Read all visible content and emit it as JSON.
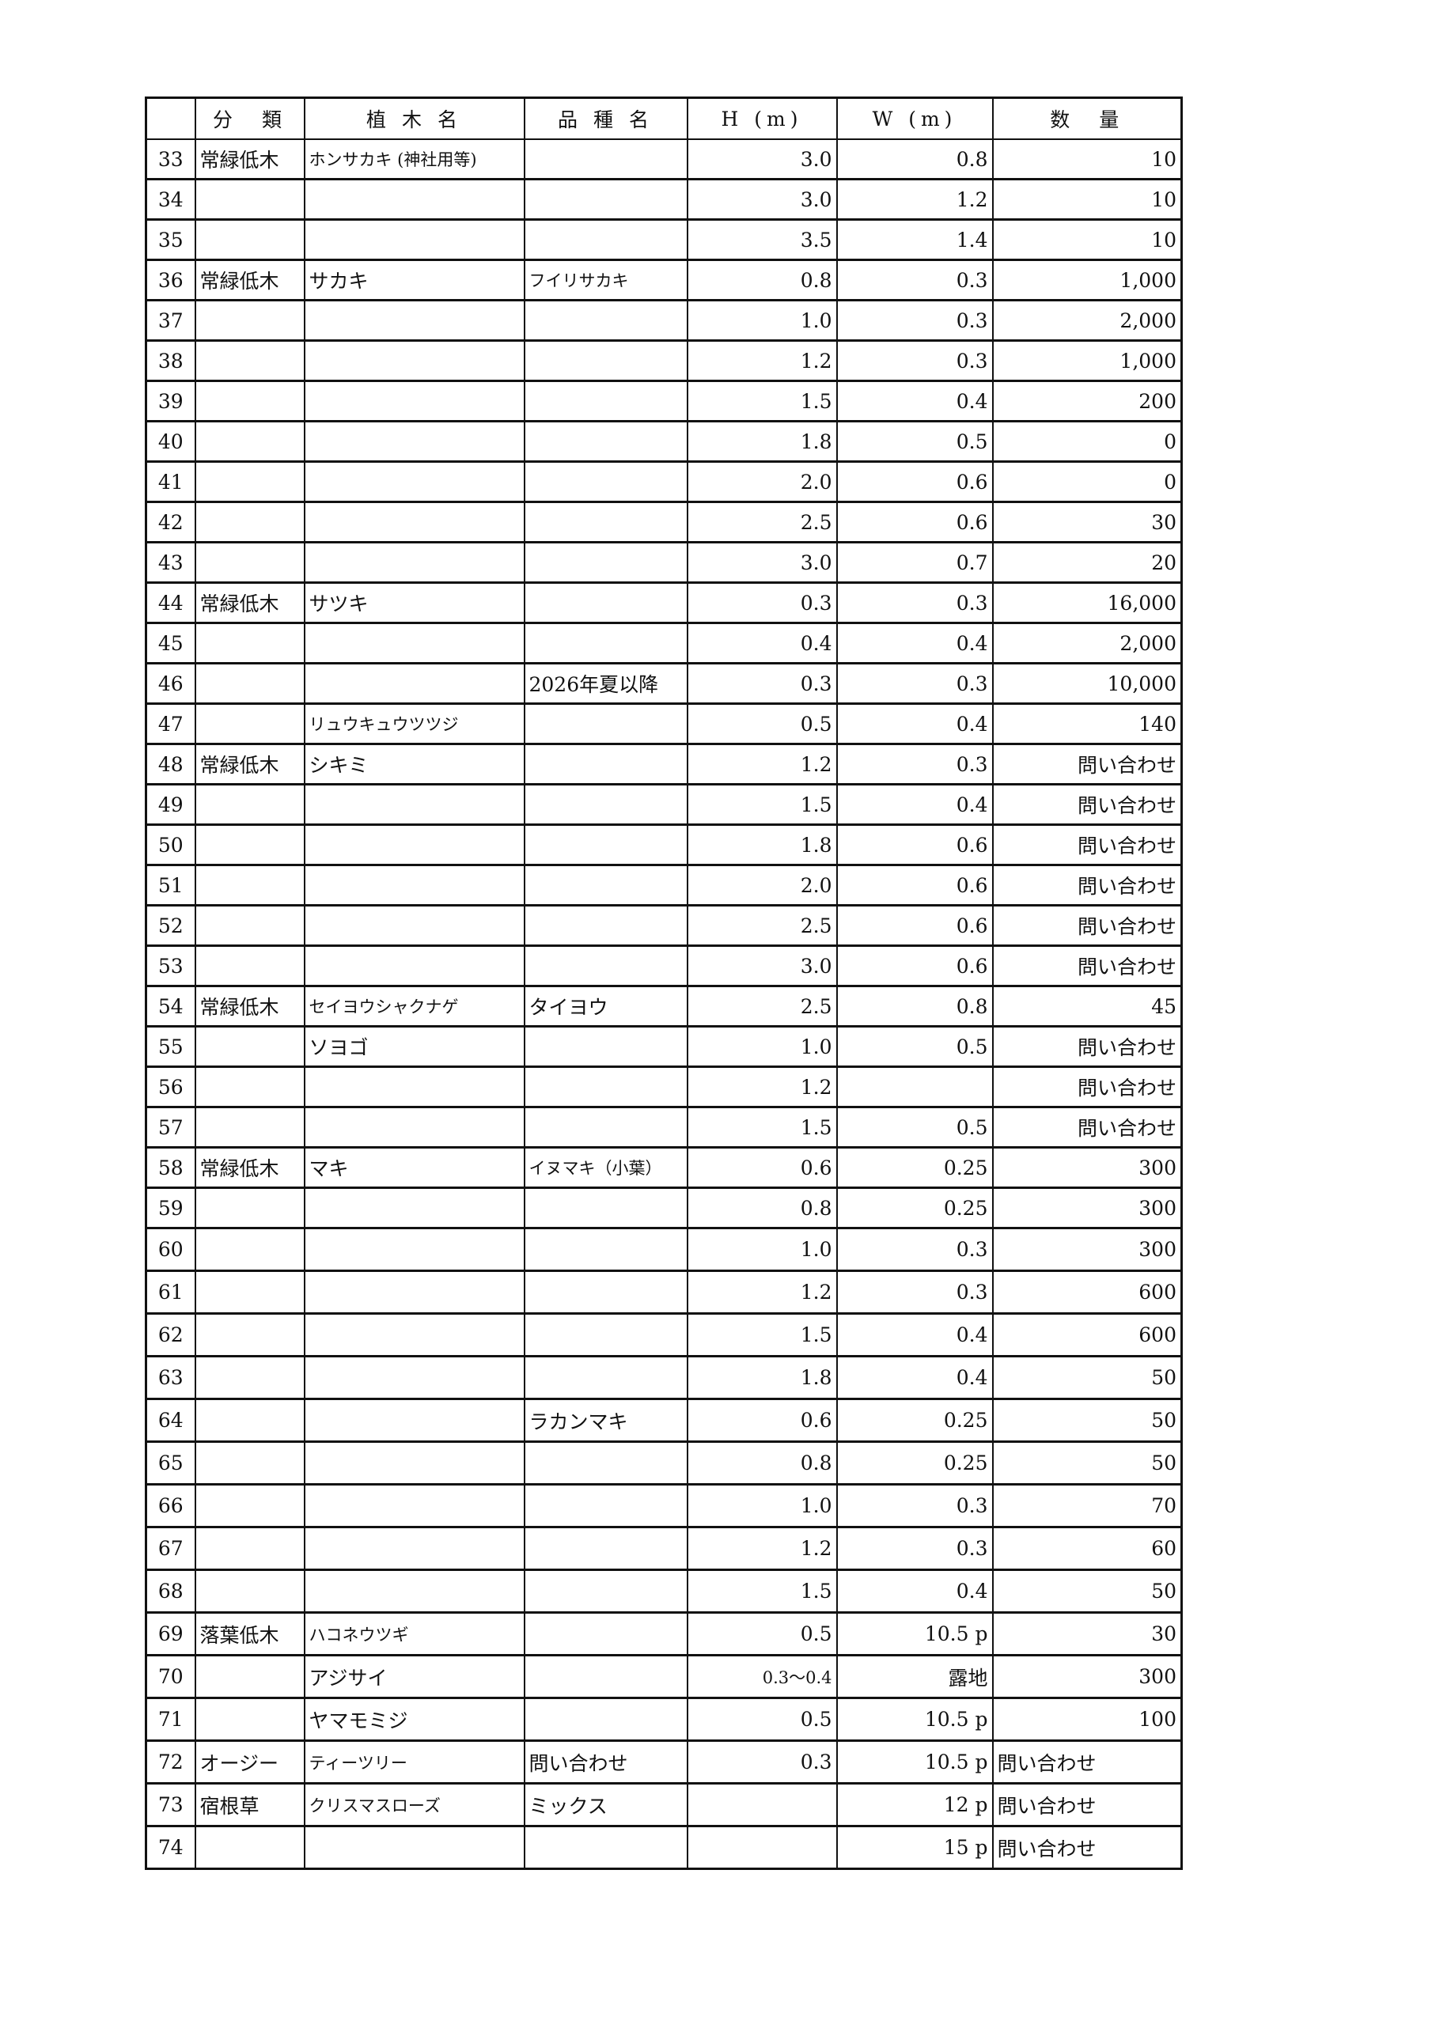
{
  "headers": [
    "",
    "分　類",
    "植 木 名",
    "品 種 名",
    "H (m)",
    "W (m)",
    "数　量"
  ],
  "rows": [
    [
      "33",
      "常緑低木",
      "ホンサカキ (神社用等)",
      "",
      "3.0",
      "0.8",
      "10"
    ],
    [
      "34",
      "",
      "",
      "",
      "3.0",
      "1.2",
      "10"
    ],
    [
      "35",
      "",
      "",
      "",
      "3.5",
      "1.4",
      "10"
    ],
    [
      "36",
      "常緑低木",
      "サカキ",
      "フイリサカキ",
      "0.8",
      "0.3",
      "1,000"
    ],
    [
      "37",
      "",
      "",
      "",
      "1.0",
      "0.3",
      "2,000"
    ],
    [
      "38",
      "",
      "",
      "",
      "1.2",
      "0.3",
      "1,000"
    ],
    [
      "39",
      "",
      "",
      "",
      "1.5",
      "0.4",
      "200"
    ],
    [
      "40",
      "",
      "",
      "",
      "1.8",
      "0.5",
      "0"
    ],
    [
      "41",
      "",
      "",
      "",
      "2.0",
      "0.6",
      "0"
    ],
    [
      "42",
      "",
      "",
      "",
      "2.5",
      "0.6",
      "30"
    ],
    [
      "43",
      "",
      "",
      "",
      "3.0",
      "0.7",
      "20"
    ],
    [
      "44",
      "常緑低木",
      "サツキ",
      "",
      "0.3",
      "0.3",
      "16,000"
    ],
    [
      "45",
      "",
      "",
      "",
      "0.4",
      "0.4",
      "2,000"
    ],
    [
      "46",
      "",
      "",
      "2026年夏以降",
      "0.3",
      "0.3",
      "10,000"
    ],
    [
      "47",
      "",
      "リュウキュウツツジ",
      "",
      "0.5",
      "0.4",
      "140"
    ],
    [
      "48",
      "常緑低木",
      "シキミ",
      "",
      "1.2",
      "0.3",
      "問い合わせ"
    ],
    [
      "49",
      "",
      "",
      "",
      "1.5",
      "0.4",
      "問い合わせ"
    ],
    [
      "50",
      "",
      "",
      "",
      "1.8",
      "0.6",
      "問い合わせ"
    ],
    [
      "51",
      "",
      "",
      "",
      "2.0",
      "0.6",
      "問い合わせ"
    ],
    [
      "52",
      "",
      "",
      "",
      "2.5",
      "0.6",
      "問い合わせ"
    ],
    [
      "53",
      "",
      "",
      "",
      "3.0",
      "0.6",
      "問い合わせ"
    ],
    [
      "54",
      "常緑低木",
      "セイヨウシャクナゲ",
      "タイヨウ",
      "2.5",
      "0.8",
      "45"
    ],
    [
      "55",
      "",
      "ソヨゴ",
      "",
      "1.0",
      "0.5",
      "問い合わせ"
    ],
    [
      "56",
      "",
      "",
      "",
      "1.2",
      "",
      "問い合わせ"
    ],
    [
      "57",
      "",
      "",
      "",
      "1.5",
      "0.5",
      "問い合わせ"
    ],
    [
      "58",
      "常緑低木",
      "マキ",
      "イヌマキ（小葉）",
      "0.6",
      "0.25",
      "300"
    ],
    [
      "59",
      "",
      "",
      "",
      "0.8",
      "0.25",
      "300"
    ],
    [
      "60",
      "",
      "",
      "",
      "1.0",
      "0.3",
      "300"
    ],
    [
      "61",
      "",
      "",
      "",
      "1.2",
      "0.3",
      "600"
    ],
    [
      "62",
      "",
      "",
      "",
      "1.5",
      "0.4",
      "600"
    ],
    [
      "63",
      "",
      "",
      "",
      "1.8",
      "0.4",
      "50"
    ],
    [
      "64",
      "",
      "",
      "ラカンマキ",
      "0.6",
      "0.25",
      "50"
    ],
    [
      "65",
      "",
      "",
      "",
      "0.8",
      "0.25",
      "50"
    ],
    [
      "66",
      "",
      "",
      "",
      "1.0",
      "0.3",
      "70"
    ],
    [
      "67",
      "",
      "",
      "",
      "1.2",
      "0.3",
      "60"
    ],
    [
      "68",
      "",
      "",
      "",
      "1.5",
      "0.4",
      "50"
    ],
    [
      "69",
      "落葉低木",
      "ハコネウツギ",
      "",
      "0.5",
      "10.5 p",
      "30"
    ],
    [
      "70",
      "",
      "アジサイ",
      "",
      "0.3〜0.4",
      "露地",
      "300"
    ],
    [
      "71",
      "",
      "ヤマモミジ",
      "",
      "0.5",
      "10.5 p",
      "100"
    ],
    [
      "72",
      "オージー",
      "ティーツリー",
      "問い合わせ",
      "0.3",
      "10.5 p",
      "問い合わせ"
    ],
    [
      "73",
      "宿根草",
      "クリスマスローズ",
      "ミックス",
      "",
      "12 p",
      "問い合わせ"
    ],
    [
      "74",
      "",
      "",
      "",
      "",
      "15 p",
      "問い合わせ"
    ]
  ],
  "left_aligned_qty_rows": [
    "72",
    "73",
    "74"
  ]
}
